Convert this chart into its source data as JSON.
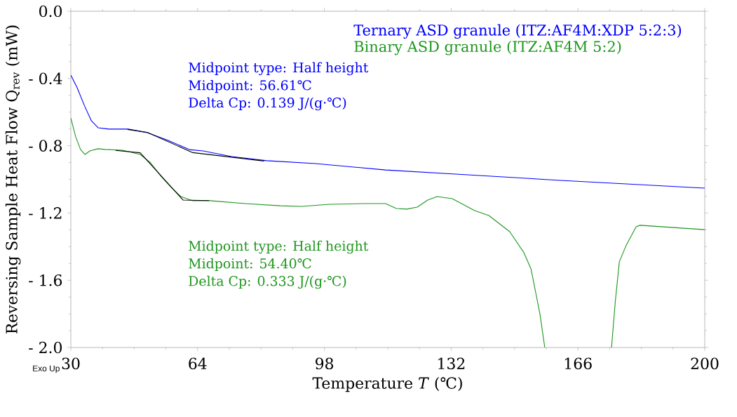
{
  "chart_data": {
    "type": "line",
    "xlabel": "Temperature *T* (℃)",
    "ylabel": "Reversing Sample Heat Flow Q$_{rev}$ (mW)",
    "xlim": [
      30,
      200
    ],
    "ylim": [
      -2.0,
      0.0
    ],
    "xticks": [
      30,
      64,
      98,
      132,
      166,
      200
    ],
    "yticks": [
      {
        "value": -2.0,
        "label": "- 2.0"
      },
      {
        "value": -1.6,
        "label": "- 1.6"
      },
      {
        "value": -1.2,
        "label": "- 1.2"
      },
      {
        "value": -0.8,
        "label": "- 0.8"
      },
      {
        "value": -0.4,
        "label": "- 0.4"
      },
      {
        "value": 0.0,
        "label": "0.0"
      }
    ],
    "legend": "top right",
    "grid": false,
    "annotations": [
      "Midpoint type: Half height",
      "Midpoint: 56.61℃",
      "Delta Cp: 0.139 J/(g·℃)",
      "Midpoint type: Half height",
      "Midpoint: 54.40℃",
      "Delta Cp: 0.333 J/(g·℃)",
      "Exo Up"
    ],
    "series": [
      {
        "name": "Ternary ASD granule (ITZ:AF4M:XDP 5:2:3)",
        "color": "#0000ff",
        "x": [
          30,
          31.7,
          33.6,
          35.5,
          37.3,
          40.2,
          45.4,
          50.5,
          56.1,
          61.8,
          65.5,
          73.1,
          82.5,
          95.6,
          114.4,
          133.2,
          161.4,
          200
        ],
        "values": [
          -0.38,
          -0.455,
          -0.559,
          -0.651,
          -0.693,
          -0.701,
          -0.701,
          -0.722,
          -0.768,
          -0.823,
          -0.831,
          -0.864,
          -0.889,
          -0.906,
          -0.944,
          -0.969,
          -1.006,
          -1.052
        ]
      },
      {
        "name": "Binary ASD granule (ITZ:AF4M 5:2)",
        "color": "#1e961e",
        "x": [
          30,
          31.3,
          32.6,
          33.8,
          35.1,
          37.3,
          39.2,
          43.9,
          48.6,
          51.4,
          54.3,
          57.1,
          59.5,
          62.7,
          67.4,
          76.8,
          86.2,
          91.9,
          99.4,
          108.8,
          114.4,
          117.3,
          120.1,
          122.9,
          125.7,
          128.2,
          132.3,
          138.3,
          142.1,
          147.7,
          151.5,
          153.4,
          155.8,
          157.1,
          166,
          175.0,
          176.0,
          177.1,
          178.9,
          181.6,
          182.7,
          200
        ],
        "values": [
          -0.635,
          -0.747,
          -0.822,
          -0.852,
          -0.831,
          -0.818,
          -0.822,
          -0.827,
          -0.852,
          -0.902,
          -0.985,
          -1.052,
          -1.102,
          -1.127,
          -1.127,
          -1.144,
          -1.157,
          -1.161,
          -1.148,
          -1.144,
          -1.144,
          -1.173,
          -1.177,
          -1.165,
          -1.123,
          -1.102,
          -1.115,
          -1.186,
          -1.215,
          -1.311,
          -1.436,
          -1.532,
          -1.8,
          -2.0,
          null,
          -2.0,
          -1.729,
          -1.49,
          -1.394,
          -1.282,
          -1.273,
          -1.299
        ]
      },
      {
        "color": "#000000",
        "x": [
          45.2,
          50.6,
          62.7,
          81.8
        ],
        "values": [
          -0.703,
          -0.721,
          -0.841,
          -0.891
        ]
      },
      {
        "color": "#000000",
        "x": [
          42.0,
          48.6,
          60.1,
          67.1
        ],
        "values": [
          -0.828,
          -0.842,
          -1.123,
          -1.126
        ]
      }
    ]
  }
}
